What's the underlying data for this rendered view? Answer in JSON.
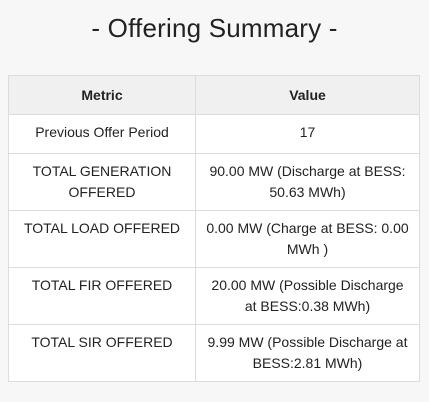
{
  "title": "- Offering Summary -",
  "table": {
    "headers": [
      "Metric",
      "Value"
    ],
    "rows": [
      {
        "metric": "Previous Offer Period",
        "value": "17"
      },
      {
        "metric": "TOTAL GENERATION OFFERED",
        "value": "90.00 MW (Discharge at BESS: 50.63 MWh)"
      },
      {
        "metric": "TOTAL LOAD OFFERED",
        "value": "0.00 MW (Charge at BESS: 0.00 MWh )"
      },
      {
        "metric": "TOTAL FIR OFFERED",
        "value": "20.00 MW (Possible Discharge at BESS:0.38 MWh)"
      },
      {
        "metric": "TOTAL SIR OFFERED",
        "value": "9.99 MW (Possible Discharge at BESS:2.81 MWh)"
      }
    ]
  }
}
